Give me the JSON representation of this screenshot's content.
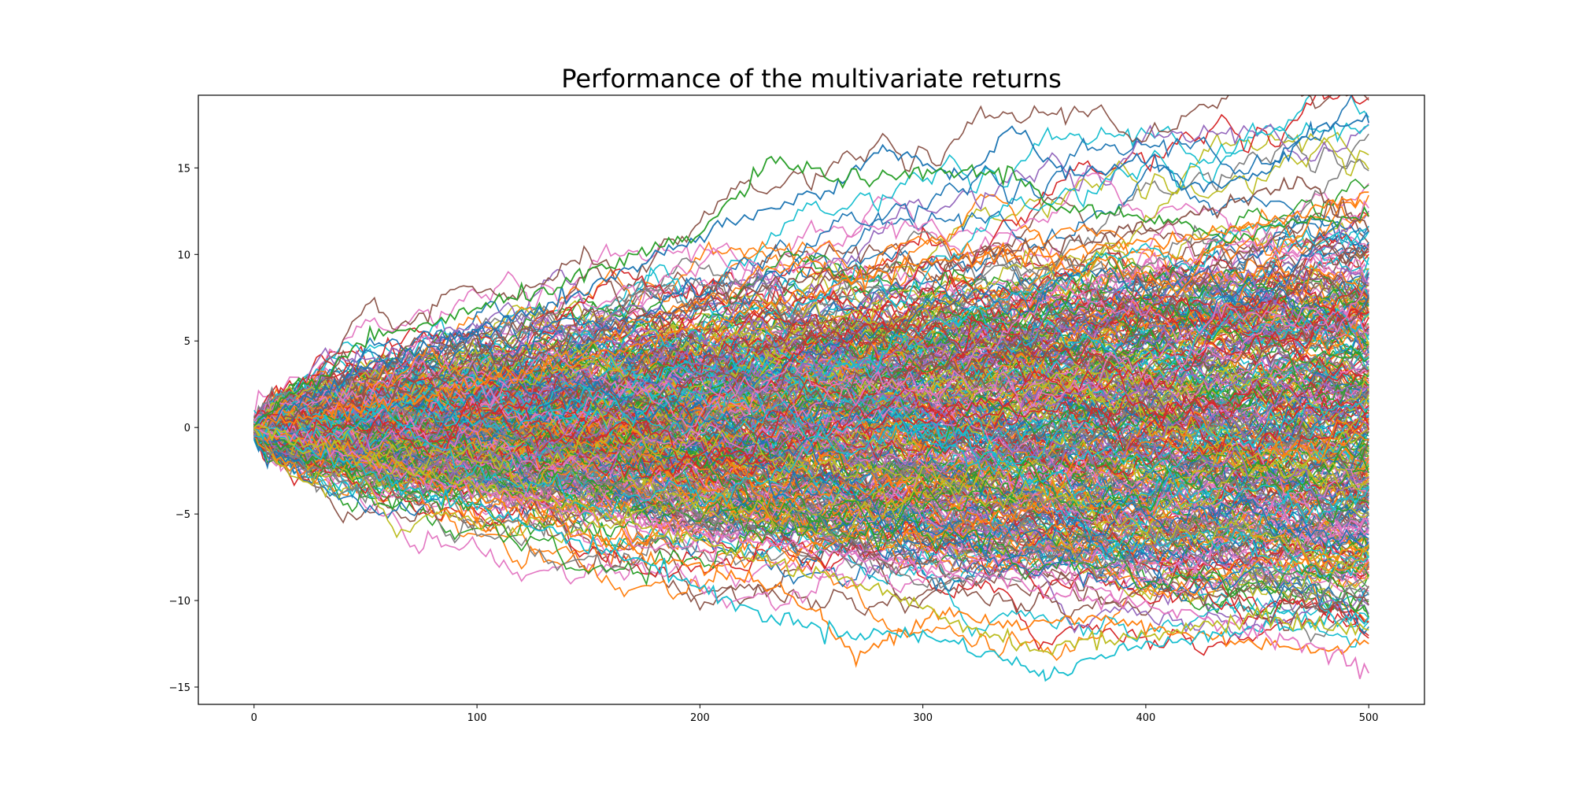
{
  "chart_data": {
    "type": "line",
    "title": "Performance of the multivariate returns",
    "xlabel": "",
    "ylabel": "",
    "xlim": [
      -25,
      525
    ],
    "ylim": [
      -16,
      19.2
    ],
    "x_ticks": [
      0,
      100,
      200,
      300,
      400,
      500
    ],
    "x_tick_labels": [
      "0",
      "100",
      "200",
      "300",
      "400",
      "500"
    ],
    "y_ticks": [
      -15,
      -10,
      -5,
      0,
      5,
      10,
      15
    ],
    "y_tick_labels": [
      "−15",
      "−10",
      "−5",
      "0",
      "5",
      "10",
      "15"
    ],
    "grid": false,
    "legend": "none",
    "n_steps": 500,
    "n_series_shown": 400,
    "palette": [
      "#1f77b4",
      "#ff7f0e",
      "#2ca02c",
      "#d62728",
      "#9467bd",
      "#8c564b",
      "#e377c2",
      "#7f7f7f",
      "#bcbd22",
      "#17becf"
    ],
    "highlighted_series": [
      {
        "color": "#1f77b4",
        "points": [
          [
            0,
            0
          ],
          [
            50,
            3.5
          ],
          [
            100,
            5.5
          ],
          [
            150,
            8
          ],
          [
            200,
            11
          ],
          [
            230,
            12.5
          ],
          [
            260,
            14
          ],
          [
            285,
            16.2
          ],
          [
            300,
            15.3
          ],
          [
            320,
            14.5
          ],
          [
            340,
            17.3
          ],
          [
            360,
            14.8
          ],
          [
            380,
            14.8
          ],
          [
            400,
            15.6
          ],
          [
            420,
            13.8
          ],
          [
            450,
            14.5
          ],
          [
            475,
            17.2
          ],
          [
            500,
            17.6
          ]
        ]
      },
      {
        "color": "#2ca02c",
        "points": [
          [
            0,
            0
          ],
          [
            50,
            5
          ],
          [
            100,
            6.8
          ],
          [
            150,
            8.8
          ],
          [
            200,
            11.2
          ],
          [
            232,
            15.4
          ],
          [
            260,
            14.5
          ],
          [
            290,
            14.3
          ],
          [
            300,
            14.8
          ],
          [
            340,
            14.7
          ],
          [
            360,
            12.8
          ],
          [
            400,
            12
          ],
          [
            440,
            11
          ],
          [
            470,
            12
          ],
          [
            500,
            12.2
          ]
        ]
      },
      {
        "color": "#ff7f0e",
        "points": [
          [
            0,
            0
          ],
          [
            60,
            -2
          ],
          [
            120,
            -5
          ],
          [
            180,
            -7.5
          ],
          [
            230,
            -9
          ],
          [
            255,
            -11
          ],
          [
            270,
            -13.5
          ],
          [
            285,
            -12
          ],
          [
            310,
            -10.5
          ],
          [
            340,
            -11.5
          ],
          [
            380,
            -11
          ],
          [
            420,
            -12
          ],
          [
            460,
            -12.5
          ],
          [
            480,
            -13
          ],
          [
            500,
            -12.5
          ]
        ]
      },
      {
        "color": "#17becf",
        "points": [
          [
            0,
            0
          ],
          [
            60,
            -3
          ],
          [
            120,
            -5.5
          ],
          [
            180,
            -8
          ],
          [
            220,
            -10.5
          ],
          [
            260,
            -11.8
          ],
          [
            300,
            -12
          ],
          [
            330,
            -13
          ],
          [
            355,
            -14.4
          ],
          [
            380,
            -13.2
          ],
          [
            420,
            -12
          ],
          [
            460,
            -11.5
          ],
          [
            500,
            -11
          ]
        ]
      },
      {
        "color": "#e377c2",
        "points": [
          [
            0,
            0
          ],
          [
            80,
            -3
          ],
          [
            150,
            -5
          ],
          [
            220,
            -6.5
          ],
          [
            300,
            -8
          ],
          [
            380,
            -10
          ],
          [
            430,
            -11
          ],
          [
            470,
            -12.5
          ],
          [
            490,
            -13.5
          ],
          [
            500,
            -14.2
          ]
        ]
      },
      {
        "color": "#8c564b",
        "points": [
          [
            0,
            0
          ],
          [
            60,
            2
          ],
          [
            120,
            4
          ],
          [
            180,
            6.5
          ],
          [
            240,
            8.5
          ],
          [
            300,
            9.5
          ],
          [
            360,
            10.5
          ],
          [
            400,
            11.5
          ],
          [
            440,
            13
          ],
          [
            470,
            14.2
          ],
          [
            500,
            11.3
          ]
        ]
      },
      {
        "color": "#ff7f0e",
        "points": [
          [
            0,
            0
          ],
          [
            60,
            1.5
          ],
          [
            120,
            3
          ],
          [
            180,
            5
          ],
          [
            240,
            7.5
          ],
          [
            300,
            9.5
          ],
          [
            360,
            10
          ],
          [
            420,
            11
          ],
          [
            460,
            12
          ],
          [
            500,
            13.6
          ]
        ]
      },
      {
        "color": "#bcbd22",
        "points": [
          [
            0,
            0
          ],
          [
            70,
            -2.5
          ],
          [
            140,
            -4.5
          ],
          [
            210,
            -7
          ],
          [
            280,
            -9.5
          ],
          [
            320,
            -11.5
          ],
          [
            350,
            -12.8
          ],
          [
            400,
            -12
          ],
          [
            450,
            -11
          ],
          [
            500,
            -11.7
          ]
        ]
      }
    ]
  }
}
